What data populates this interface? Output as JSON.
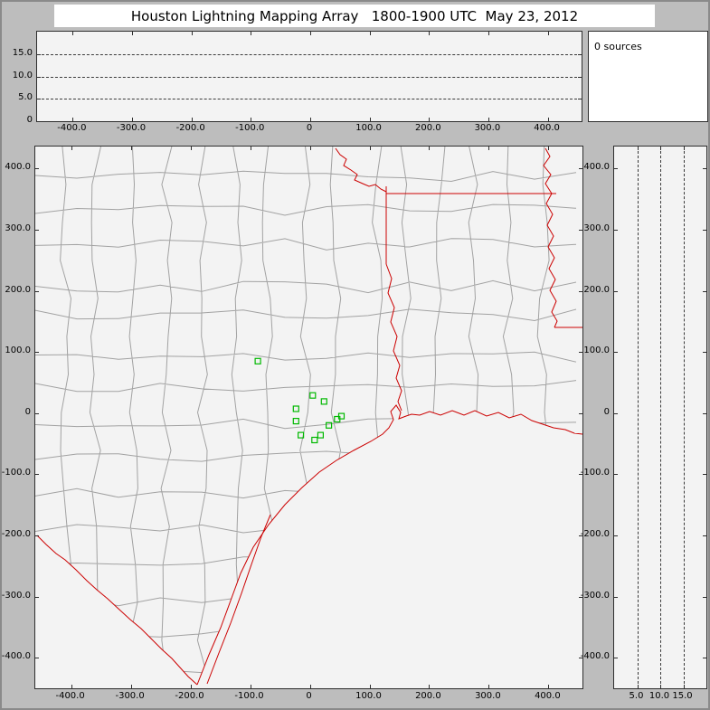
{
  "title": "Houston Lightning Mapping Array   1800-1900 UTC  May 23, 2012",
  "sources_panel": {
    "count_label": "0 sources"
  },
  "colors": {
    "frame_bg": "#bdbdbd",
    "panel_bg": "#f3f3f3",
    "panel_border": "#2e2e2e",
    "county_line": "#a2a2a2",
    "state_border": "#cc0000",
    "station_marker": "#00b800",
    "dashed_grid": "#3c3c3c",
    "title_bg": "#ffffff"
  },
  "chart_data": [
    {
      "id": "altitude_vs_east_west",
      "type": "scatter",
      "position": "top",
      "x_range": [
        -460,
        457
      ],
      "y_range": [
        0,
        20
      ],
      "x_tick_values": [
        -400,
        -300,
        -200,
        -100,
        0,
        100,
        200,
        300,
        400
      ],
      "x_tick_labels": [
        "-400.0",
        "-300.0",
        "-200.0",
        "-100.0",
        "0",
        "100.0",
        "200.0",
        "300.0",
        "400.0"
      ],
      "y_tick_values": [
        0,
        5,
        10,
        15
      ],
      "y_tick_labels": [
        "0",
        "5.0",
        "10.0",
        "15.0"
      ],
      "dashed_gridlines_at": [
        5,
        10,
        15
      ],
      "points": []
    },
    {
      "id": "plan_view_map",
      "type": "scatter",
      "position": "main",
      "x_range": [
        -460,
        457
      ],
      "y_range": [
        -450,
        436
      ],
      "x_tick_values": [
        -400,
        -300,
        -200,
        -100,
        0,
        100,
        200,
        300,
        400
      ],
      "x_tick_labels": [
        "-400.0",
        "-300.0",
        "-200.0",
        "-100.0",
        "0",
        "100.0",
        "200.0",
        "300.0",
        "400.0"
      ],
      "y_tick_values": [
        400,
        300,
        200,
        100,
        0,
        -100,
        -200,
        -300,
        -400
      ],
      "y_tick_labels": [
        "400.0",
        "300.0",
        "200.0",
        "100.0",
        "0",
        "-100.0",
        "-200.0",
        "-300.0",
        "-400.0"
      ],
      "station_markers_km": [
        [
          -87,
          85
        ],
        [
          -23,
          7
        ],
        [
          5,
          29
        ],
        [
          24,
          19
        ],
        [
          -23,
          -13
        ],
        [
          -15,
          -36
        ],
        [
          8,
          -44
        ],
        [
          18,
          -36
        ],
        [
          32,
          -20
        ],
        [
          46,
          -10
        ],
        [
          53,
          -5
        ]
      ],
      "points": []
    },
    {
      "id": "altitude_vs_north_south",
      "type": "scatter",
      "position": "right",
      "x_range": [
        0,
        20
      ],
      "y_range": [
        -450,
        436
      ],
      "x_tick_values": [
        5,
        10,
        15
      ],
      "x_tick_labels": [
        "5.0",
        "10.0",
        "15.0"
      ],
      "y_tick_values": [
        400,
        300,
        200,
        100,
        0,
        -100,
        -200,
        -300,
        -400
      ],
      "y_tick_labels": [
        "400.0",
        "300.0",
        "200.0",
        "100.0",
        "0",
        "-100.0",
        "-200.0",
        "-300.0",
        "-400.0"
      ],
      "dashed_gridlines_at": [
        5,
        10,
        15
      ],
      "points": []
    }
  ]
}
